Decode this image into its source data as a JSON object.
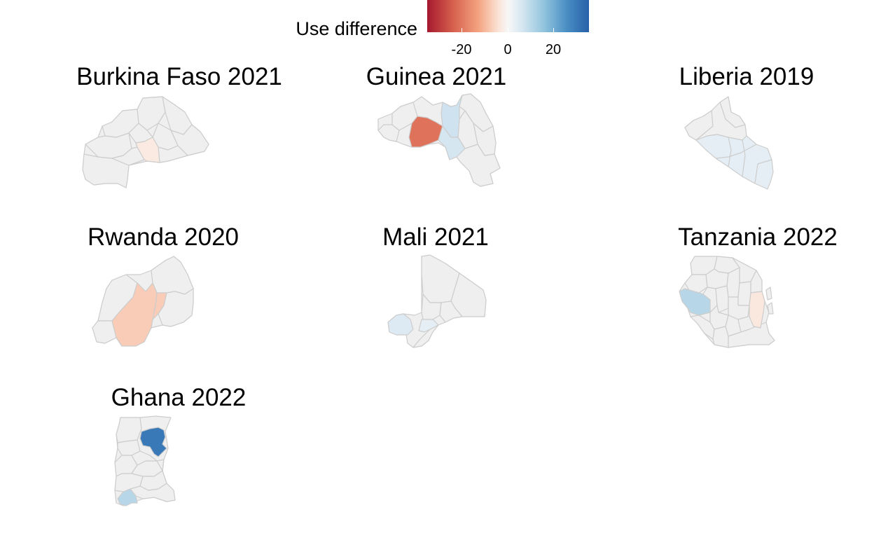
{
  "legend": {
    "title": "Use difference",
    "ticks": [
      "-20",
      "0",
      "20"
    ],
    "range": [
      -38,
      38
    ],
    "colors": [
      "#a5192e",
      "#d6604d",
      "#f4a582",
      "#fbe3d6",
      "#f7f7f7",
      "#d9e8f2",
      "#92c5de",
      "#4a8fc4",
      "#2760a8"
    ],
    "no_difference_color": "#efefef",
    "border_color": "#cdcdcd"
  },
  "maps": [
    {
      "title": "Burkina Faso 2021",
      "highlighted_regions": [
        {
          "value": -6
        }
      ]
    },
    {
      "title": "Guinea 2021",
      "highlighted_regions": [
        {
          "value": -26
        },
        {
          "value": 11
        },
        {
          "value": 10
        }
      ]
    },
    {
      "title": "Liberia 2019",
      "highlighted_regions": [
        {
          "value": 6
        }
      ]
    },
    {
      "title": "Rwanda 2020",
      "highlighted_regions": [
        {
          "value": -13
        },
        {
          "value": -13
        }
      ]
    },
    {
      "title": "Mali 2021",
      "highlighted_regions": [
        {
          "value": 8
        },
        {
          "value": 6
        }
      ]
    },
    {
      "title": "Tanzania 2022",
      "highlighted_regions": [
        {
          "value": 14
        },
        {
          "value": -7
        }
      ]
    },
    {
      "title": "Ghana 2022",
      "highlighted_regions": [
        {
          "value": 33
        },
        {
          "value": 14
        }
      ]
    }
  ]
}
